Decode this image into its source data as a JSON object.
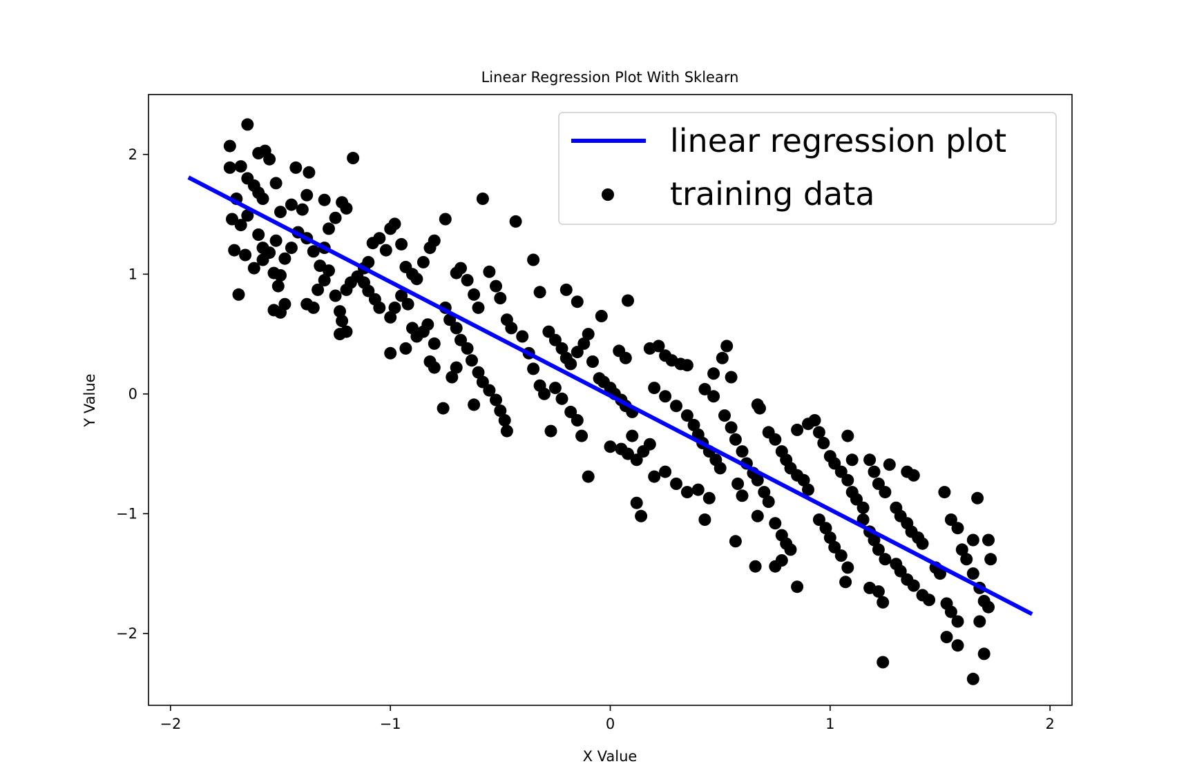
{
  "chart_data": {
    "type": "scatter",
    "title": "Linear Regression Plot With Sklearn",
    "xlabel": "X Value",
    "ylabel": "Y Value",
    "xlim": [
      -2.1,
      2.1
    ],
    "ylim": [
      -2.6,
      2.5
    ],
    "xticks": [
      -2,
      -1,
      0,
      1,
      2
    ],
    "yticks": [
      -2,
      -1,
      0,
      1,
      2
    ],
    "xtick_labels": [
      "−2",
      "−1",
      "0",
      "1",
      "2"
    ],
    "ytick_labels": [
      "−2",
      "−1",
      "0",
      "1",
      "2"
    ],
    "grid": false,
    "legend_position": "top-right",
    "colors": {
      "line": "#0000ff",
      "points": "#000000"
    },
    "series": [
      {
        "name": "linear regression plot",
        "kind": "line",
        "x": [
          -1.91,
          1.91
        ],
        "y": [
          1.8,
          -1.83
        ]
      },
      {
        "name": "training data",
        "kind": "scatter",
        "points": [
          [
            -1.73,
            2.07
          ],
          [
            -1.65,
            2.25
          ],
          [
            -1.6,
            2.01
          ],
          [
            -1.57,
            2.03
          ],
          [
            -1.55,
            1.96
          ],
          [
            -1.68,
            1.9
          ],
          [
            -1.73,
            1.89
          ],
          [
            -1.7,
            1.63
          ],
          [
            -1.65,
            1.8
          ],
          [
            -1.62,
            1.74
          ],
          [
            -1.6,
            1.68
          ],
          [
            -1.58,
            1.63
          ],
          [
            -1.52,
            1.76
          ],
          [
            -1.5,
            1.52
          ],
          [
            -1.45,
            1.58
          ],
          [
            -1.4,
            1.54
          ],
          [
            -1.38,
            1.66
          ],
          [
            -1.43,
            1.89
          ],
          [
            -1.37,
            1.85
          ],
          [
            -1.72,
            1.46
          ],
          [
            -1.68,
            1.41
          ],
          [
            -1.65,
            1.49
          ],
          [
            -1.6,
            1.33
          ],
          [
            -1.58,
            1.22
          ],
          [
            -1.55,
            1.18
          ],
          [
            -1.52,
            1.28
          ],
          [
            -1.48,
            1.13
          ],
          [
            -1.45,
            1.22
          ],
          [
            -1.42,
            1.35
          ],
          [
            -1.38,
            1.3
          ],
          [
            -1.35,
            1.19
          ],
          [
            -1.32,
            1.07
          ],
          [
            -1.3,
            1.22
          ],
          [
            -1.28,
            1.38
          ],
          [
            -1.25,
            1.47
          ],
          [
            -1.22,
            1.6
          ],
          [
            -1.2,
            1.55
          ],
          [
            -1.3,
            1.62
          ],
          [
            -1.71,
            1.2
          ],
          [
            -1.66,
            1.16
          ],
          [
            -1.62,
            1.05
          ],
          [
            -1.58,
            1.12
          ],
          [
            -1.53,
            1.01
          ],
          [
            -1.5,
            0.99
          ],
          [
            -1.51,
            0.9
          ],
          [
            -1.48,
            0.75
          ],
          [
            -1.5,
            0.68
          ],
          [
            -1.53,
            0.7
          ],
          [
            -1.69,
            0.83
          ],
          [
            -1.38,
            0.75
          ],
          [
            -1.35,
            0.72
          ],
          [
            -1.33,
            0.87
          ],
          [
            -1.3,
            0.95
          ],
          [
            -1.28,
            1.03
          ],
          [
            -1.25,
            0.82
          ],
          [
            -1.23,
            0.69
          ],
          [
            -1.22,
            0.61
          ],
          [
            -1.2,
            0.52
          ],
          [
            -1.23,
            0.5
          ],
          [
            -1.2,
            0.87
          ],
          [
            -1.18,
            0.93
          ],
          [
            -1.15,
            0.98
          ],
          [
            -1.12,
            1.05
          ],
          [
            -1.1,
            1.1
          ],
          [
            -1.08,
            1.26
          ],
          [
            -1.05,
            1.3
          ],
          [
            -1.02,
            1.2
          ],
          [
            -1.0,
            1.38
          ],
          [
            -0.98,
            1.42
          ],
          [
            -0.95,
            1.25
          ],
          [
            -0.93,
            1.06
          ],
          [
            -0.9,
            1.0
          ],
          [
            -0.88,
            0.96
          ],
          [
            -0.85,
            1.1
          ],
          [
            -0.82,
            1.22
          ],
          [
            -0.8,
            1.28
          ],
          [
            -1.17,
            1.97
          ],
          [
            -1.12,
            0.93
          ],
          [
            -1.1,
            0.86
          ],
          [
            -1.07,
            0.79
          ],
          [
            -1.05,
            0.72
          ],
          [
            -1.0,
            0.64
          ],
          [
            -0.98,
            0.72
          ],
          [
            -0.95,
            0.82
          ],
          [
            -0.92,
            0.75
          ],
          [
            -0.9,
            0.55
          ],
          [
            -0.88,
            0.48
          ],
          [
            -0.85,
            0.52
          ],
          [
            -0.83,
            0.58
          ],
          [
            -0.8,
            0.42
          ],
          [
            -0.82,
            0.27
          ],
          [
            -0.8,
            0.22
          ],
          [
            -1.0,
            0.34
          ],
          [
            -0.93,
            0.38
          ],
          [
            -0.75,
            1.46
          ],
          [
            -0.7,
            1.01
          ],
          [
            -0.68,
            1.05
          ],
          [
            -0.65,
            0.95
          ],
          [
            -0.62,
            0.83
          ],
          [
            -0.6,
            0.72
          ],
          [
            -0.58,
            1.63
          ],
          [
            -0.55,
            1.02
          ],
          [
            -0.52,
            0.9
          ],
          [
            -0.5,
            0.8
          ],
          [
            -0.47,
            0.62
          ],
          [
            -0.45,
            0.55
          ],
          [
            -0.43,
            1.44
          ],
          [
            -0.4,
            0.48
          ],
          [
            -0.37,
            0.34
          ],
          [
            -0.35,
            0.21
          ],
          [
            -0.32,
            0.07
          ],
          [
            -0.3,
            0.0
          ],
          [
            -0.75,
            0.72
          ],
          [
            -0.73,
            0.62
          ],
          [
            -0.7,
            0.55
          ],
          [
            -0.68,
            0.45
          ],
          [
            -0.65,
            0.38
          ],
          [
            -0.63,
            0.28
          ],
          [
            -0.6,
            0.18
          ],
          [
            -0.58,
            0.1
          ],
          [
            -0.55,
            0.03
          ],
          [
            -0.52,
            -0.05
          ],
          [
            -0.5,
            -0.14
          ],
          [
            -0.48,
            -0.22
          ],
          [
            -0.47,
            -0.31
          ],
          [
            -0.62,
            -0.09
          ],
          [
            -0.76,
            -0.12
          ],
          [
            -0.72,
            0.14
          ],
          [
            -0.7,
            0.22
          ],
          [
            -0.35,
            1.12
          ],
          [
            -0.32,
            0.85
          ],
          [
            -0.28,
            0.52
          ],
          [
            -0.25,
            0.45
          ],
          [
            -0.22,
            0.38
          ],
          [
            -0.2,
            0.3
          ],
          [
            -0.18,
            0.25
          ],
          [
            -0.15,
            0.35
          ],
          [
            -0.12,
            0.42
          ],
          [
            -0.1,
            0.5
          ],
          [
            -0.2,
            0.87
          ],
          [
            -0.15,
            0.77
          ],
          [
            -0.25,
            0.05
          ],
          [
            -0.22,
            -0.04
          ],
          [
            -0.18,
            -0.15
          ],
          [
            -0.15,
            -0.22
          ],
          [
            -0.13,
            -0.35
          ],
          [
            -0.1,
            -0.69
          ],
          [
            -0.27,
            -0.31
          ],
          [
            -0.08,
            0.27
          ],
          [
            -0.05,
            0.13
          ],
          [
            -0.03,
            0.1
          ],
          [
            0.0,
            0.05
          ],
          [
            0.02,
            0.0
          ],
          [
            0.05,
            -0.05
          ],
          [
            0.07,
            -0.1
          ],
          [
            0.1,
            -0.15
          ],
          [
            -0.04,
            0.65
          ],
          [
            0.08,
            0.78
          ],
          [
            0.04,
            0.36
          ],
          [
            0.07,
            0.3
          ],
          [
            0.0,
            -0.44
          ],
          [
            0.05,
            -0.46
          ],
          [
            0.08,
            -0.5
          ],
          [
            0.1,
            -0.35
          ],
          [
            0.12,
            -0.55
          ],
          [
            0.15,
            -0.48
          ],
          [
            0.18,
            -0.42
          ],
          [
            0.2,
            -0.69
          ],
          [
            0.12,
            -0.91
          ],
          [
            0.14,
            -1.02
          ],
          [
            0.18,
            0.38
          ],
          [
            0.22,
            0.4
          ],
          [
            0.25,
            0.32
          ],
          [
            0.28,
            0.28
          ],
          [
            0.32,
            0.25
          ],
          [
            0.35,
            0.24
          ],
          [
            0.2,
            0.05
          ],
          [
            0.25,
            -0.02
          ],
          [
            0.3,
            -0.1
          ],
          [
            0.35,
            -0.18
          ],
          [
            0.38,
            -0.26
          ],
          [
            0.4,
            -0.34
          ],
          [
            0.42,
            -0.41
          ],
          [
            0.45,
            -0.48
          ],
          [
            0.48,
            -0.55
          ],
          [
            0.5,
            -0.62
          ],
          [
            0.25,
            -0.65
          ],
          [
            0.3,
            -0.75
          ],
          [
            0.35,
            -0.82
          ],
          [
            0.4,
            -0.8
          ],
          [
            0.45,
            -0.87
          ],
          [
            0.43,
            -1.05
          ],
          [
            0.53,
            0.4
          ],
          [
            0.51,
            0.3
          ],
          [
            0.47,
            0.17
          ],
          [
            0.55,
            0.14
          ],
          [
            0.43,
            0.04
          ],
          [
            0.47,
            -0.02
          ],
          [
            0.52,
            -0.18
          ],
          [
            0.55,
            -0.28
          ],
          [
            0.57,
            -0.38
          ],
          [
            0.6,
            -0.48
          ],
          [
            0.62,
            -0.58
          ],
          [
            0.65,
            -0.66
          ],
          [
            0.67,
            -0.72
          ],
          [
            0.7,
            -0.82
          ],
          [
            0.72,
            -0.9
          ],
          [
            0.58,
            -0.75
          ],
          [
            0.6,
            -0.85
          ],
          [
            0.57,
            -1.23
          ],
          [
            0.67,
            -1.02
          ],
          [
            0.66,
            -1.44
          ],
          [
            0.67,
            -0.09
          ],
          [
            0.68,
            -0.12
          ],
          [
            0.72,
            -0.32
          ],
          [
            0.75,
            -0.38
          ],
          [
            0.78,
            -0.48
          ],
          [
            0.8,
            -0.55
          ],
          [
            0.82,
            -0.62
          ],
          [
            0.85,
            -0.68
          ],
          [
            0.88,
            -0.72
          ],
          [
            0.9,
            -0.8
          ],
          [
            0.75,
            -1.08
          ],
          [
            0.78,
            -1.18
          ],
          [
            0.8,
            -1.25
          ],
          [
            0.82,
            -1.3
          ],
          [
            0.75,
            -1.44
          ],
          [
            0.78,
            -1.39
          ],
          [
            0.85,
            -1.61
          ],
          [
            0.85,
            -0.3
          ],
          [
            0.9,
            -0.25
          ],
          [
            0.93,
            -0.22
          ],
          [
            0.95,
            -0.32
          ],
          [
            0.97,
            -0.41
          ],
          [
            1.0,
            -0.52
          ],
          [
            1.02,
            -0.58
          ],
          [
            1.05,
            -0.65
          ],
          [
            1.08,
            -0.72
          ],
          [
            1.1,
            -0.82
          ],
          [
            1.12,
            -0.88
          ],
          [
            1.15,
            -0.95
          ],
          [
            1.08,
            -0.35
          ],
          [
            1.1,
            -0.55
          ],
          [
            0.95,
            -1.05
          ],
          [
            0.98,
            -1.12
          ],
          [
            1.0,
            -1.2
          ],
          [
            1.02,
            -1.28
          ],
          [
            1.05,
            -1.35
          ],
          [
            1.08,
            -1.45
          ],
          [
            1.07,
            -1.57
          ],
          [
            1.18,
            -0.55
          ],
          [
            1.2,
            -0.65
          ],
          [
            1.22,
            -0.75
          ],
          [
            1.25,
            -0.82
          ],
          [
            1.27,
            -0.59
          ],
          [
            1.15,
            -1.05
          ],
          [
            1.18,
            -1.15
          ],
          [
            1.2,
            -1.22
          ],
          [
            1.22,
            -1.3
          ],
          [
            1.25,
            -1.38
          ],
          [
            1.18,
            -1.62
          ],
          [
            1.22,
            -1.65
          ],
          [
            1.24,
            -1.74
          ],
          [
            1.24,
            -2.24
          ],
          [
            1.3,
            -0.95
          ],
          [
            1.32,
            -1.02
          ],
          [
            1.35,
            -1.08
          ],
          [
            1.37,
            -1.15
          ],
          [
            1.4,
            -1.2
          ],
          [
            1.42,
            -1.25
          ],
          [
            1.35,
            -0.65
          ],
          [
            1.38,
            -0.68
          ],
          [
            1.3,
            -1.42
          ],
          [
            1.32,
            -1.48
          ],
          [
            1.35,
            -1.55
          ],
          [
            1.38,
            -1.6
          ],
          [
            1.42,
            -1.68
          ],
          [
            1.45,
            -1.72
          ],
          [
            1.48,
            -1.45
          ],
          [
            1.5,
            -1.5
          ],
          [
            1.52,
            -0.82
          ],
          [
            1.55,
            -1.05
          ],
          [
            1.58,
            -1.12
          ],
          [
            1.6,
            -1.3
          ],
          [
            1.62,
            -1.38
          ],
          [
            1.65,
            -1.22
          ],
          [
            1.67,
            -0.87
          ],
          [
            1.53,
            -1.75
          ],
          [
            1.55,
            -1.82
          ],
          [
            1.58,
            -1.9
          ],
          [
            1.53,
            -2.03
          ],
          [
            1.58,
            -2.1
          ],
          [
            1.65,
            -1.5
          ],
          [
            1.68,
            -1.62
          ],
          [
            1.7,
            -1.73
          ],
          [
            1.72,
            -1.78
          ],
          [
            1.68,
            -1.9
          ],
          [
            1.7,
            -2.17
          ],
          [
            1.65,
            -2.38
          ],
          [
            1.72,
            -1.22
          ],
          [
            1.73,
            -1.38
          ]
        ]
      }
    ]
  }
}
